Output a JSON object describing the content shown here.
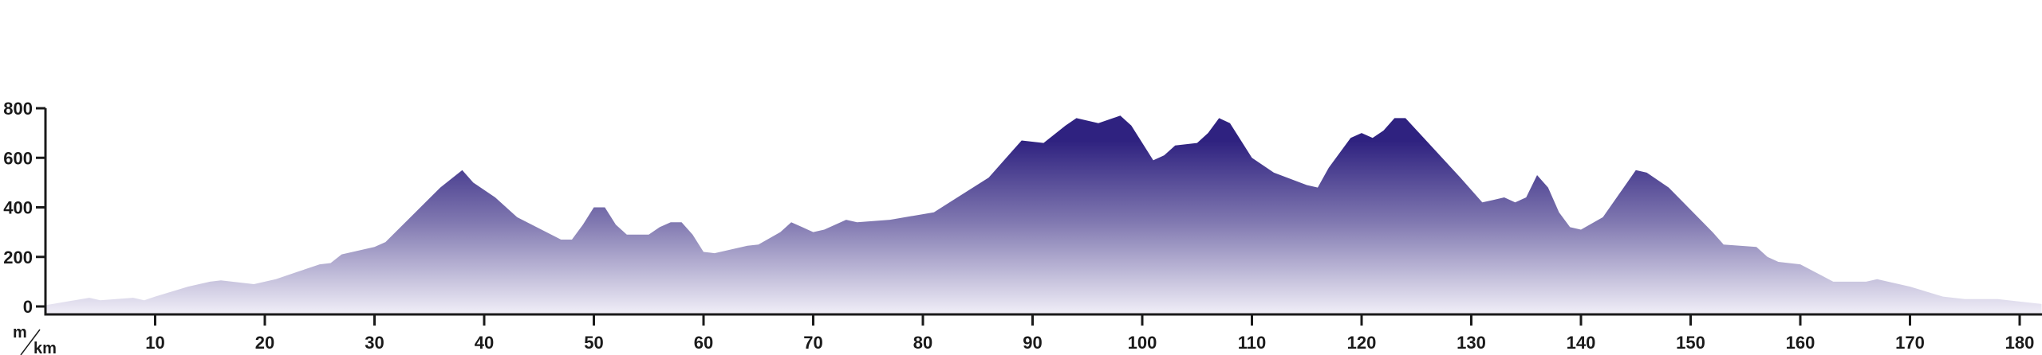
{
  "chart_data": {
    "type": "area",
    "title": "",
    "y_unit": "m",
    "x_unit": "km",
    "xlim": [
      0,
      182
    ],
    "ylim": [
      0,
      800
    ],
    "grid": false,
    "x_ticks": [
      10,
      20,
      30,
      40,
      50,
      60,
      70,
      80,
      90,
      100,
      110,
      120,
      130,
      140,
      150,
      160,
      170,
      180
    ],
    "y_ticks": [
      0,
      200,
      400,
      600,
      800
    ],
    "colors": {
      "top": "#2f2280",
      "mid": "#8078b0",
      "bottom": "#f1eff8",
      "axis": "#1a1a1a"
    },
    "points": [
      [
        0,
        5
      ],
      [
        2,
        20
      ],
      [
        4,
        35
      ],
      [
        5,
        25
      ],
      [
        8,
        35
      ],
      [
        9,
        25
      ],
      [
        10,
        40
      ],
      [
        13,
        80
      ],
      [
        15,
        100
      ],
      [
        16,
        105
      ],
      [
        19,
        90
      ],
      [
        21,
        110
      ],
      [
        23,
        140
      ],
      [
        25,
        170
      ],
      [
        26,
        175
      ],
      [
        27,
        210
      ],
      [
        30,
        240
      ],
      [
        31,
        260
      ],
      [
        36,
        480
      ],
      [
        38,
        550
      ],
      [
        39,
        500
      ],
      [
        41,
        440
      ],
      [
        43,
        360
      ],
      [
        47,
        270
      ],
      [
        48,
        270
      ],
      [
        49,
        330
      ],
      [
        50,
        400
      ],
      [
        51,
        400
      ],
      [
        52,
        330
      ],
      [
        53,
        290
      ],
      [
        55,
        290
      ],
      [
        56,
        320
      ],
      [
        57,
        340
      ],
      [
        58,
        340
      ],
      [
        59,
        290
      ],
      [
        60,
        220
      ],
      [
        61,
        215
      ],
      [
        64,
        245
      ],
      [
        65,
        250
      ],
      [
        67,
        300
      ],
      [
        68,
        340
      ],
      [
        69,
        320
      ],
      [
        70,
        300
      ],
      [
        71,
        310
      ],
      [
        73,
        350
      ],
      [
        74,
        340
      ],
      [
        77,
        350
      ],
      [
        81,
        380
      ],
      [
        86,
        520
      ],
      [
        89,
        670
      ],
      [
        91,
        660
      ],
      [
        93,
        730
      ],
      [
        94,
        760
      ],
      [
        96,
        740
      ],
      [
        98,
        770
      ],
      [
        99,
        730
      ],
      [
        101,
        590
      ],
      [
        102,
        610
      ],
      [
        103,
        650
      ],
      [
        105,
        660
      ],
      [
        106,
        700
      ],
      [
        107,
        760
      ],
      [
        108,
        740
      ],
      [
        110,
        600
      ],
      [
        112,
        540
      ],
      [
        115,
        490
      ],
      [
        116,
        480
      ],
      [
        117,
        560
      ],
      [
        119,
        680
      ],
      [
        120,
        700
      ],
      [
        121,
        680
      ],
      [
        122,
        710
      ],
      [
        123,
        760
      ],
      [
        124,
        760
      ],
      [
        129,
        520
      ],
      [
        131,
        420
      ],
      [
        132,
        430
      ],
      [
        133,
        440
      ],
      [
        134,
        420
      ],
      [
        135,
        440
      ],
      [
        136,
        530
      ],
      [
        137,
        480
      ],
      [
        138,
        380
      ],
      [
        139,
        320
      ],
      [
        140,
        310
      ],
      [
        142,
        360
      ],
      [
        145,
        550
      ],
      [
        146,
        540
      ],
      [
        148,
        480
      ],
      [
        152,
        300
      ],
      [
        153,
        250
      ],
      [
        156,
        240
      ],
      [
        157,
        200
      ],
      [
        158,
        180
      ],
      [
        160,
        170
      ],
      [
        163,
        100
      ],
      [
        166,
        100
      ],
      [
        167,
        110
      ],
      [
        170,
        80
      ],
      [
        173,
        40
      ],
      [
        175,
        30
      ],
      [
        178,
        30
      ],
      [
        182,
        10
      ]
    ]
  }
}
